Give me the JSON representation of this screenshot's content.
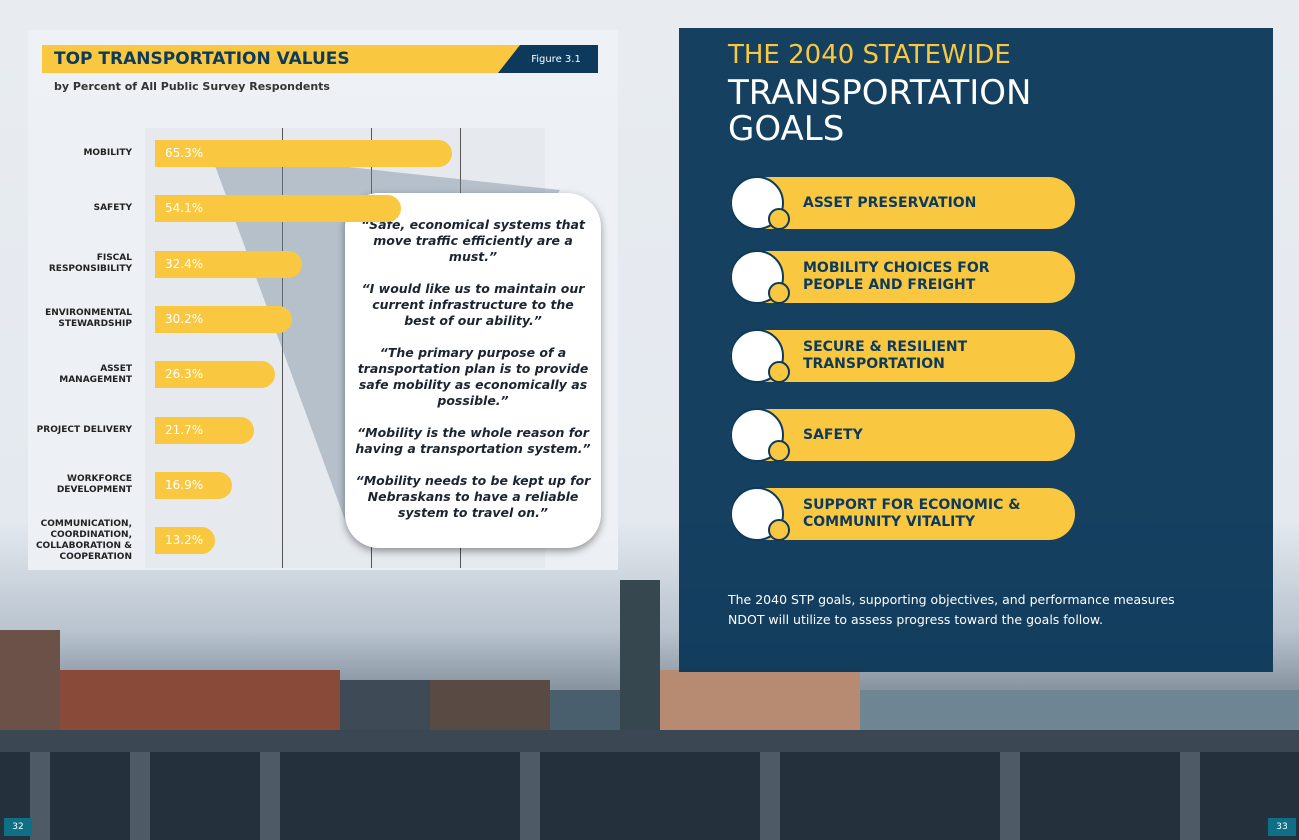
{
  "chart_data": {
    "type": "bar",
    "orientation": "horizontal",
    "title": "TOP TRANSPORTATION VALUES",
    "figure_label": "Figure 3.1",
    "subtitle": "by Percent of All Public Survey Respondents",
    "categories": [
      "MOBILITY",
      "SAFETY",
      "FISCAL RESPONSIBILITY",
      "ENVIRONMENTAL STEWARDSHIP",
      "ASSET MANAGEMENT",
      "PROJECT DELIVERY",
      "WORKFORCE DEVELOPMENT",
      "COMMUNICATION, COORDINATION, COLLABORATION & COOPERATION"
    ],
    "values": [
      65.3,
      54.1,
      32.4,
      30.2,
      26.3,
      21.7,
      16.9,
      13.2
    ],
    "value_labels": [
      "65.3%",
      "54.1%",
      "32.4%",
      "30.2%",
      "26.3%",
      "21.7%",
      "16.9%",
      "13.2%"
    ],
    "color": "#f9c840"
  },
  "quotes": [
    "“Safe, economical systems that move traffic efficiently are a must.”",
    "“I would like us to maintain our current infrastructure to the best of our ability.”",
    "“The primary purpose of a transportation plan is to provide safe mobility as economically as possible.”",
    "“Mobility is the whole reason for having a transportation system.”",
    "“Mobility needs to be kept up for Nebraskans to have a reliable system to travel on.”"
  ],
  "goals": {
    "title_line1": "THE 2040 STATEWIDE",
    "title_line2": "TRANSPORTATION GOALS",
    "items": [
      "ASSET PRESERVATION",
      "MOBILITY CHOICES FOR PEOPLE AND FREIGHT",
      "SECURE & RESILIENT TRANSPORTATION",
      "SAFETY",
      "SUPPORT FOR ECONOMIC & COMMUNITY VITALITY"
    ],
    "footer": "The 2040 STP goals, supporting objectives, and performance measures NDOT will utilize to assess progress toward the goals follow."
  },
  "page_numbers": [
    "32",
    "33"
  ]
}
